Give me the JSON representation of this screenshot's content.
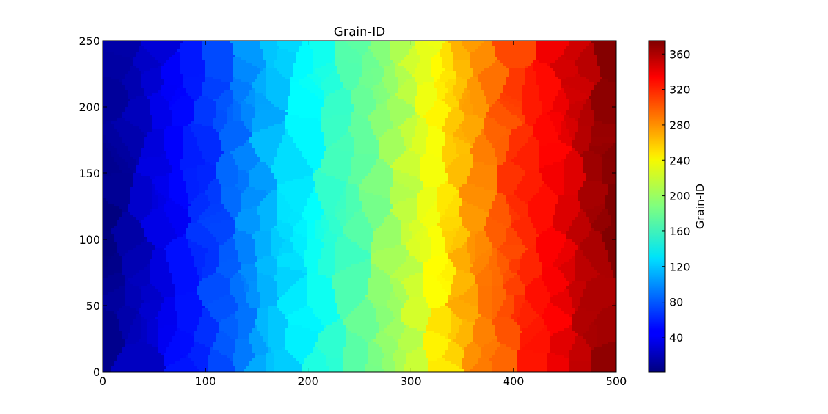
{
  "chart_data": {
    "type": "heatmap",
    "title": "Grain-ID",
    "xlabel": "",
    "ylabel": "",
    "xlim": [
      0,
      500
    ],
    "ylim": [
      0,
      250
    ],
    "xticks": [
      0,
      100,
      200,
      300,
      400,
      500
    ],
    "yticks": [
      0,
      50,
      100,
      150,
      200,
      250
    ],
    "colormap": "jet",
    "colorbar": {
      "label": "Grain-ID",
      "range": [
        1,
        375
      ],
      "ticks": [
        40,
        80,
        120,
        160,
        200,
        240,
        280,
        320,
        360
      ]
    },
    "description_values": "Voronoi grain map; grain IDs increase from left (~1) to right (~375)",
    "grain_count": 375
  }
}
